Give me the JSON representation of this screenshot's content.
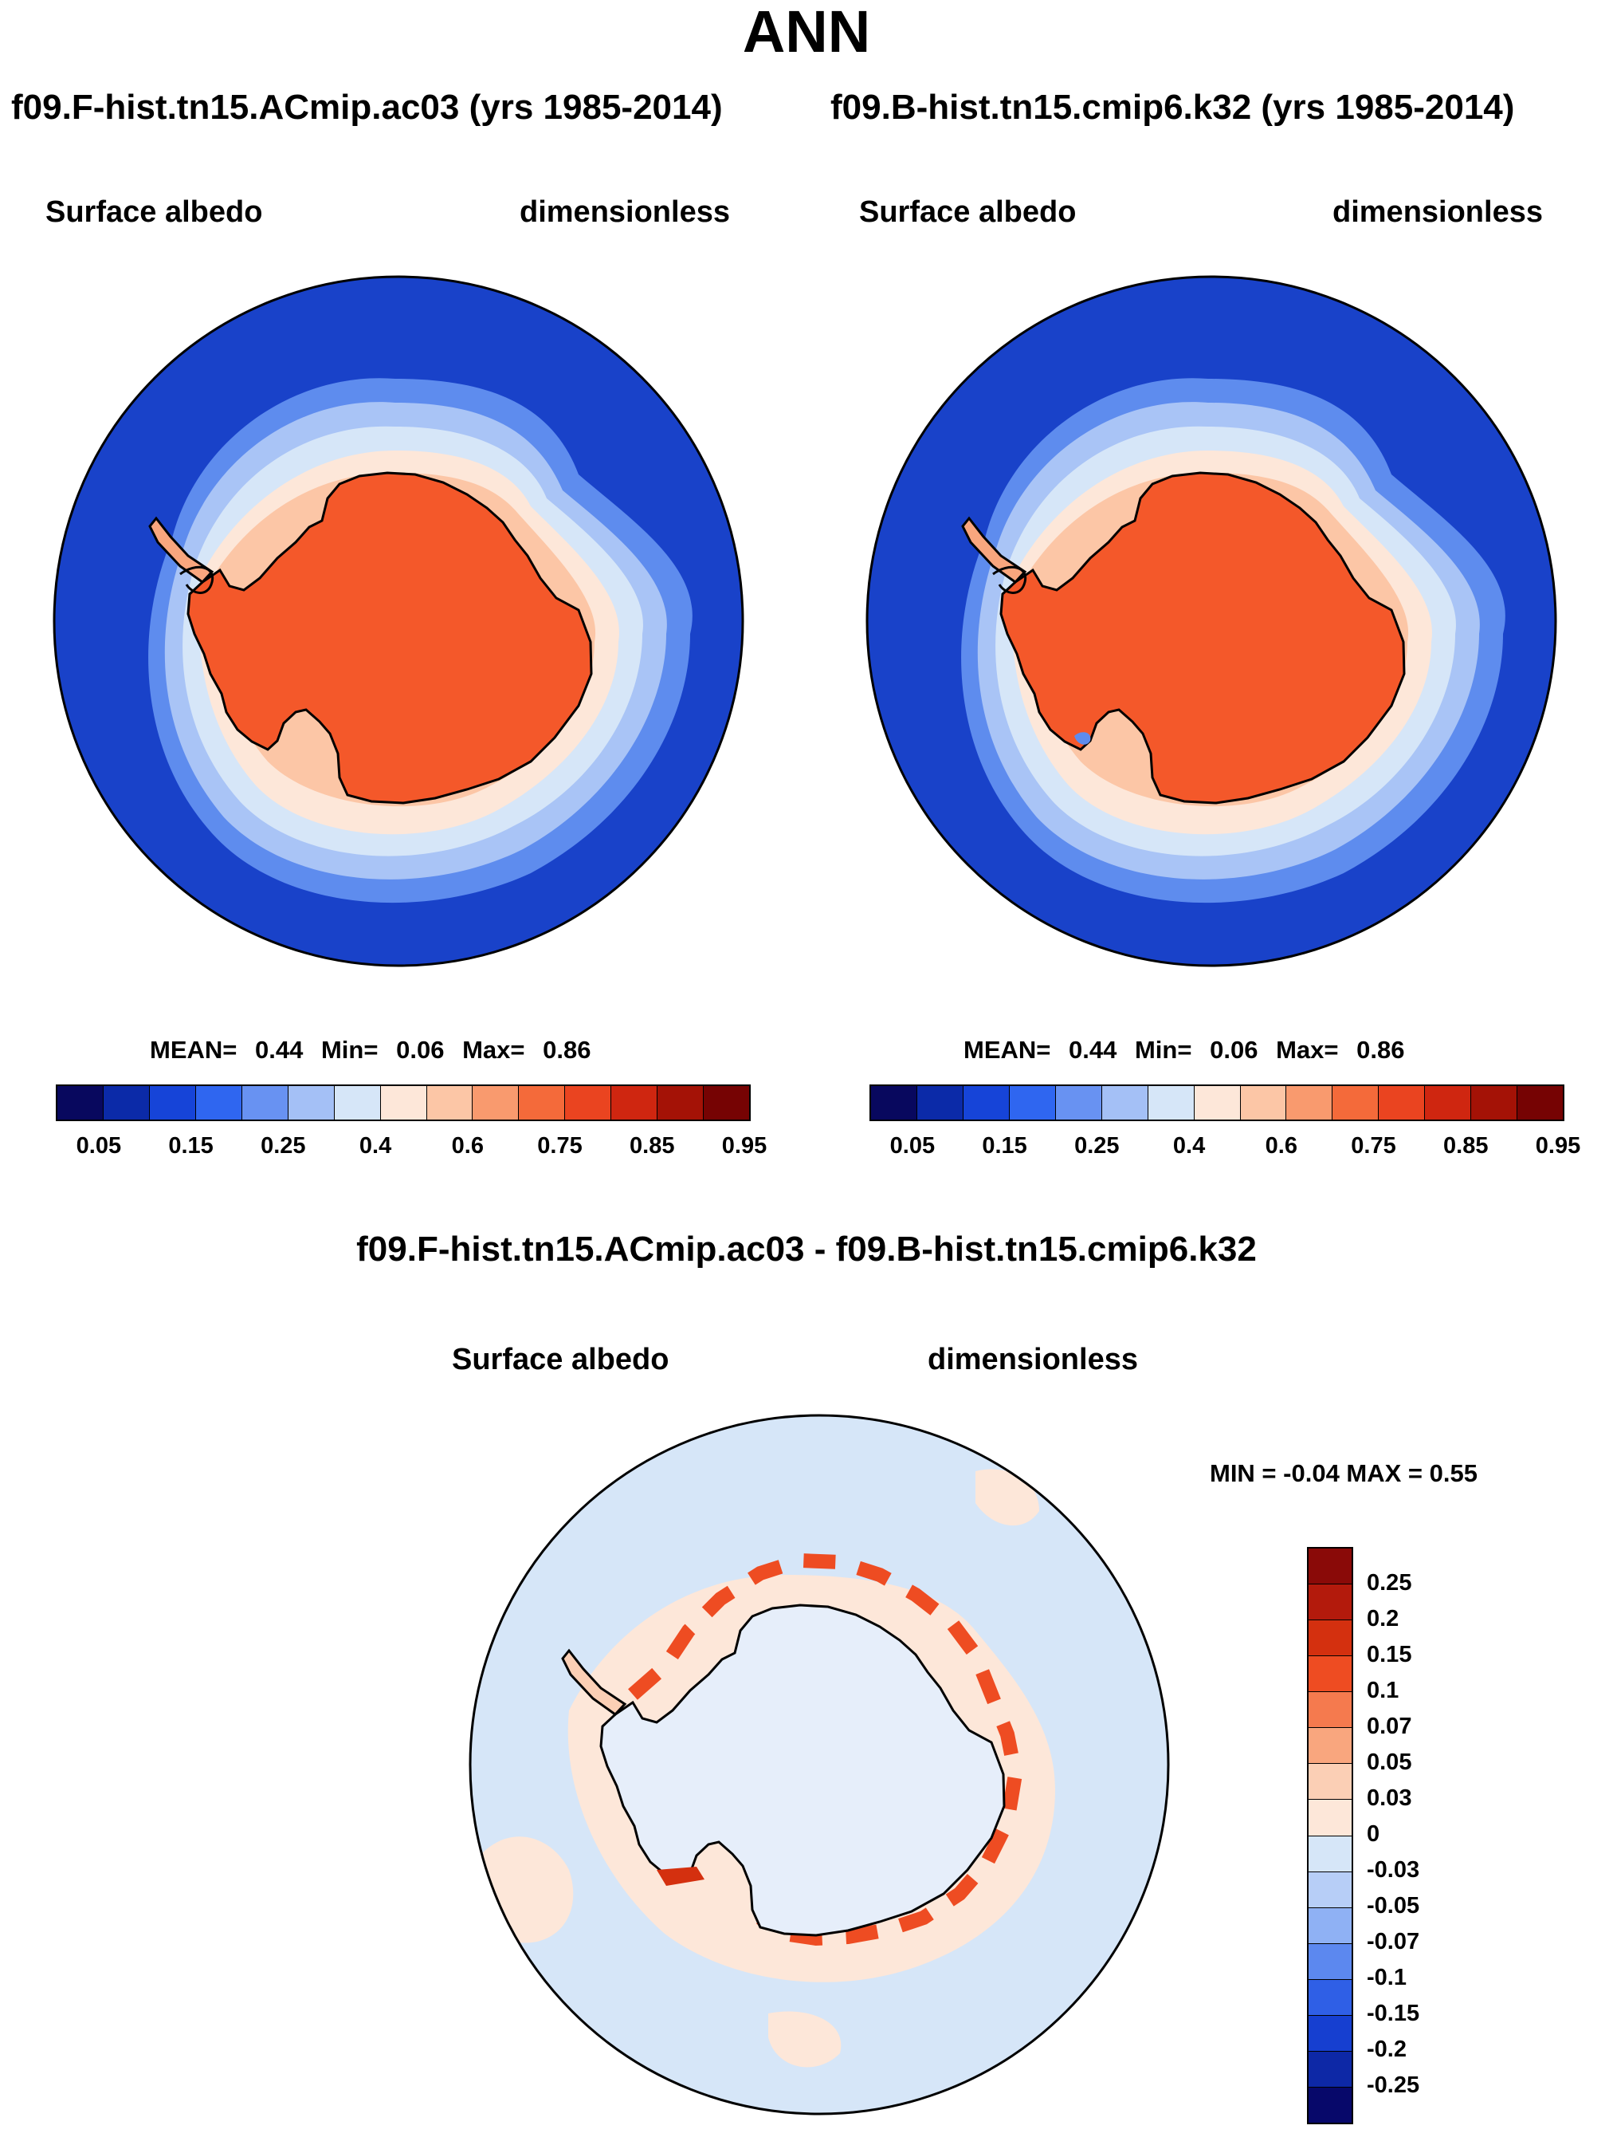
{
  "title": "ANN",
  "panels": [
    {
      "run": "f09.F-hist.tn15.ACmip.ac03 (yrs 1985-2014)",
      "variable": "Surface albedo",
      "units": "dimensionless",
      "stats": {
        "mean_label": "MEAN=",
        "mean": "0.44",
        "min_label": "Min=",
        "min": "0.06",
        "max_label": "Max=",
        "max": "0.86"
      }
    },
    {
      "run": "f09.B-hist.tn15.cmip6.k32 (yrs 1985-2014)",
      "variable": "Surface albedo",
      "units": "dimensionless",
      "stats": {
        "mean_label": "MEAN=",
        "mean": "0.44",
        "min_label": "Min=",
        "min": "0.06",
        "max_label": "Max=",
        "max": "0.86"
      }
    }
  ],
  "colorbar": {
    "colors": [
      "#08085e",
      "#0b2aa8",
      "#1644d8",
      "#2f66f0",
      "#6892f2",
      "#a4c0f6",
      "#d6e6f8",
      "#fde7d9",
      "#fcc6a6",
      "#f99a6e",
      "#f46a3a",
      "#ea4420",
      "#cf2610",
      "#a41206",
      "#760303"
    ],
    "labels": [
      "0.05",
      "0.15",
      "0.25",
      "0.4",
      "0.6",
      "0.75",
      "0.85",
      "0.95"
    ]
  },
  "diff": {
    "title": "f09.F-hist.tn15.ACmip.ac03 - f09.B-hist.tn15.cmip6.k32",
    "variable": "Surface albedo",
    "units": "dimensionless",
    "minmax_text": "MIN = -0.04 MAX = 0.55",
    "colorbar": {
      "colors": [
        "#8a0a08",
        "#b31a0c",
        "#d4300f",
        "#ee4c22",
        "#f57a4e",
        "#f9a67e",
        "#fbcfb5",
        "#fde7d9",
        "#d6e6f8",
        "#b7cef7",
        "#8fb1f4",
        "#5c88ef",
        "#2f5fe6",
        "#163fd0",
        "#0d28a6",
        "#07086a"
      ],
      "labels": [
        "0.25",
        "0.2",
        "0.15",
        "0.1",
        "0.07",
        "0.05",
        "0.03",
        "0",
        "-0.03",
        "-0.05",
        "-0.07",
        "-0.1",
        "-0.15",
        "-0.2",
        "-0.25"
      ]
    }
  },
  "icons": {
    "map1": "antarctica-albedo-map",
    "map2": "antarctica-albedo-map",
    "map3": "antarctica-albedo-difference-map"
  }
}
